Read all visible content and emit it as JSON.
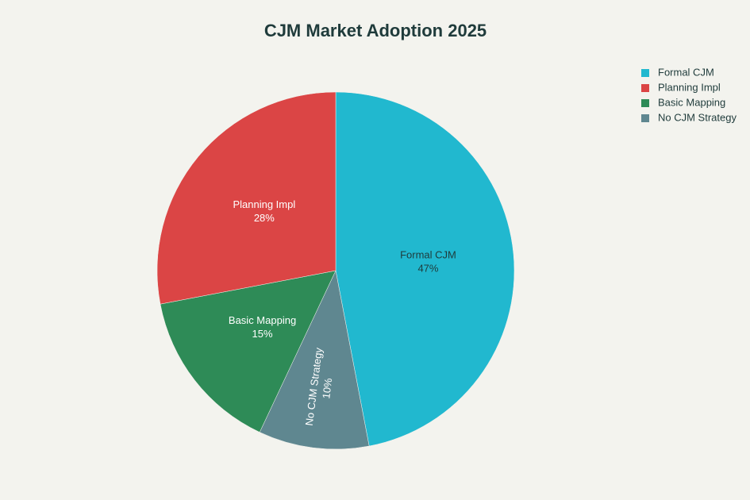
{
  "chart_data": {
    "type": "pie",
    "title": "CJM Market Adoption 2025",
    "categories": [
      "Formal CJM",
      "No CJM Strategy",
      "Basic Mapping",
      "Planning Impl"
    ],
    "values": [
      47,
      10,
      15,
      28
    ],
    "value_labels": [
      "47%",
      "10%",
      "15%",
      "28%"
    ],
    "colors": [
      "#21b8cf",
      "#5f8790",
      "#2e8b57",
      "#db4545"
    ],
    "legend_order": [
      0,
      3,
      2,
      1
    ],
    "legend": "top-right"
  }
}
